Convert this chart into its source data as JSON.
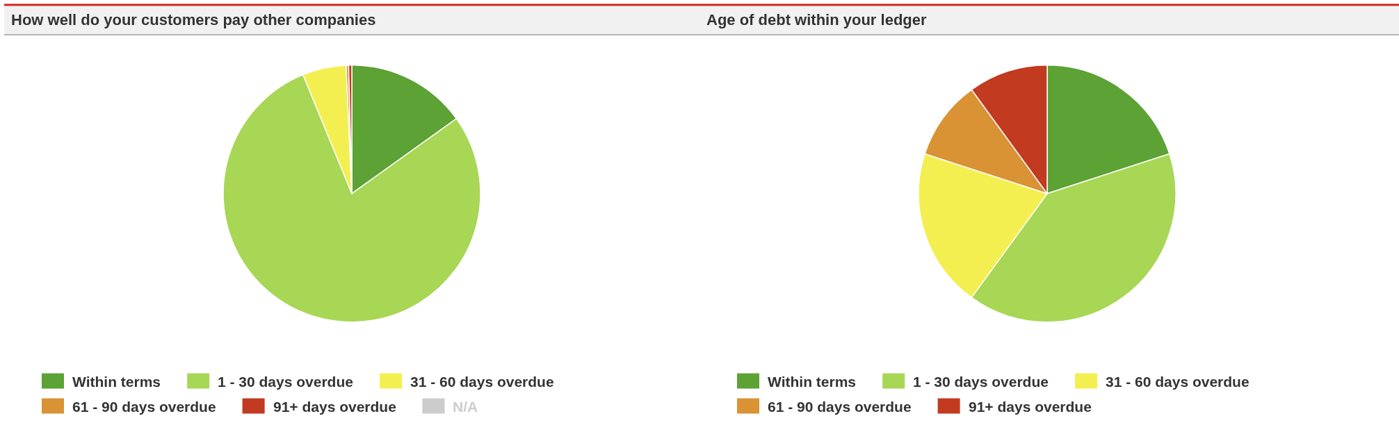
{
  "chart_data": [
    {
      "type": "pie",
      "title": "How well do your customers pay other companies",
      "categories": [
        "Within terms",
        "1 - 30 days overdue",
        "31 - 60 days overdue",
        "61 - 90 days overdue",
        "91+ days overdue",
        "N/A"
      ],
      "values": [
        15.1,
        78.7,
        5.5,
        0.3,
        0.4,
        null
      ],
      "colors": [
        "#5ca234",
        "#a8d655",
        "#f3ef50",
        "#d99234",
        "#c23a20",
        "#cccccc"
      ],
      "legend": "bottom"
    },
    {
      "type": "pie",
      "title": "Age of debt within your ledger",
      "categories": [
        "Within terms",
        "1 - 30 days overdue",
        "31 - 60 days overdue",
        "61 - 90 days overdue",
        "91+ days overdue"
      ],
      "values": [
        20,
        40,
        20,
        10,
        10
      ],
      "colors": [
        "#5ca234",
        "#a8d655",
        "#f3ef50",
        "#d99234",
        "#c23a20"
      ],
      "legend": "bottom"
    }
  ]
}
